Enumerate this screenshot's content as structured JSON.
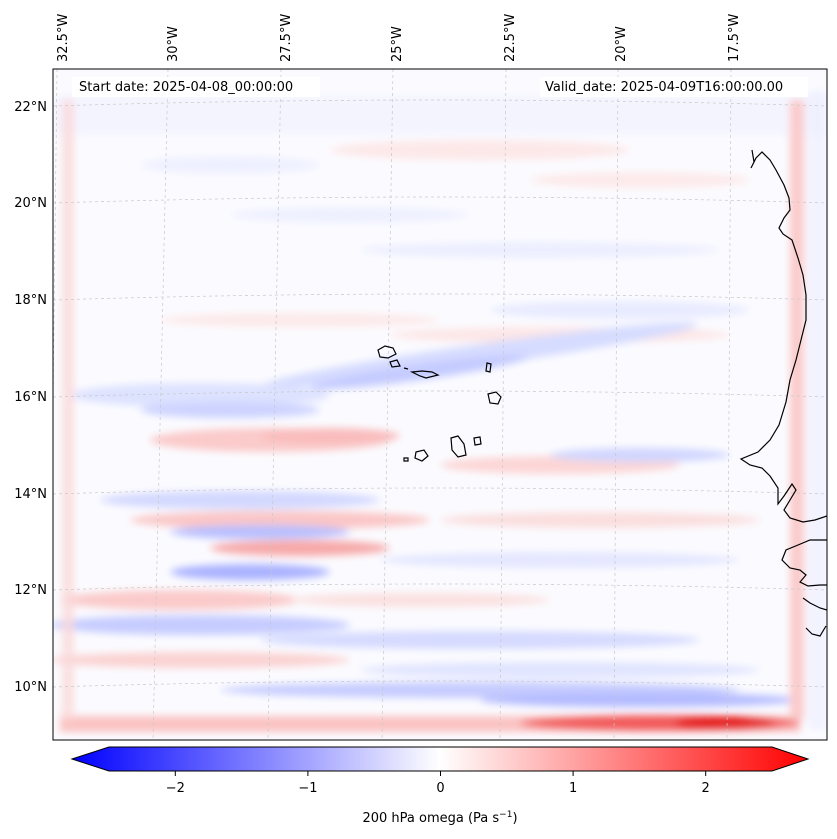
{
  "map": {
    "start_label": "Start date: 2025-04-08_00:00:00",
    "valid_label": "Valid_date: 2025-04-09T16:00:00.00",
    "lon_labels": [
      "32.5°W",
      "30°W",
      "27.5°W",
      "25°W",
      "22.5°W",
      "20°W",
      "17.5°W"
    ],
    "lat_labels": [
      "22°N",
      "20°N",
      "18°N",
      "16°N",
      "14°N",
      "12°N",
      "10°N"
    ],
    "extent": {
      "lon_min": -33.0,
      "lon_max": -15.0,
      "lat_min": 8.9,
      "lat_max": 22.8
    },
    "coastline": "black",
    "gridlines": true,
    "field": "200 hPa omega"
  },
  "colorbar": {
    "label_main": "200 hPa omega (Pa s",
    "label_sup": "−1",
    "label_close": ")",
    "tick_labels": [
      "−2",
      "−1",
      "0",
      "1",
      "2"
    ],
    "ticks": [
      -2,
      -1,
      0,
      1,
      2
    ],
    "range": [
      -2.5,
      2.5
    ],
    "extend": "both",
    "colormap": "bwr",
    "min_color": "#0000ff",
    "mid_color": "#ffffff",
    "max_color": "#ff0000"
  }
}
